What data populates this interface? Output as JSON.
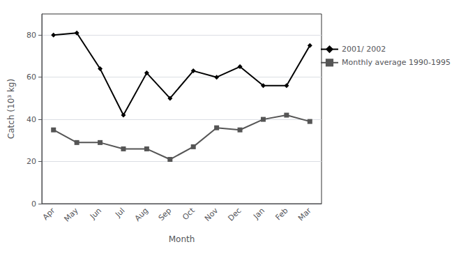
{
  "chart_data": {
    "type": "line",
    "categories": [
      "Apr",
      "May",
      "Jun",
      "Jul",
      "Aug",
      "Sep",
      "Oct",
      "Nov",
      "Dec",
      "Jan",
      "Feb",
      "Mar"
    ],
    "series": [
      {
        "name": "2001/ 2002",
        "color": "#000000",
        "marker": "diamond",
        "line_style": "solid",
        "values": [
          80,
          81,
          64,
          42,
          62,
          50,
          63,
          60,
          65,
          56,
          56,
          75
        ]
      },
      {
        "name": "Monthly average 1990-1995",
        "color": "#555555",
        "marker": "square",
        "line_style": "solid",
        "values": [
          35,
          29,
          29,
          26,
          26,
          21,
          27,
          36,
          35,
          40,
          42,
          39
        ]
      }
    ],
    "xlabel": "Month",
    "ylabel": "Catch (10³ kg)",
    "ylim": [
      0,
      90
    ],
    "yticks": [
      0,
      20,
      40,
      60,
      80
    ],
    "grid": true,
    "legend": "right"
  }
}
